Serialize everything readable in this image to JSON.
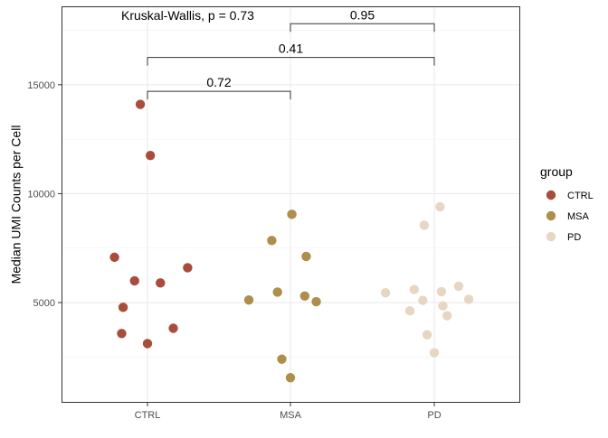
{
  "chart_data": {
    "type": "scatter",
    "title": "",
    "xlabel": "",
    "ylabel": "Median UMI Counts per Cell",
    "categories": [
      "CTRL",
      "MSA",
      "PD"
    ],
    "ylim": [
      400,
      18600
    ],
    "yticks": [
      5000,
      10000,
      15000
    ],
    "grid": true,
    "legend": {
      "title": "group",
      "placement": "right"
    },
    "series": [
      {
        "name": "CTRL",
        "color": "#A84D3B",
        "points": [
          {
            "x": "CTRL",
            "jitter": -0.05,
            "y": 14100
          },
          {
            "x": "CTRL",
            "jitter": 0.02,
            "y": 11750
          },
          {
            "x": "CTRL",
            "jitter": -0.23,
            "y": 7080
          },
          {
            "x": "CTRL",
            "jitter": -0.09,
            "y": 6000
          },
          {
            "x": "CTRL",
            "jitter": 0.09,
            "y": 5900
          },
          {
            "x": "CTRL",
            "jitter": 0.28,
            "y": 6600
          },
          {
            "x": "CTRL",
            "jitter": -0.17,
            "y": 4780
          },
          {
            "x": "CTRL",
            "jitter": -0.18,
            "y": 3580
          },
          {
            "x": "CTRL",
            "jitter": 0.18,
            "y": 3820
          },
          {
            "x": "CTRL",
            "jitter": 0.0,
            "y": 3120
          }
        ]
      },
      {
        "name": "MSA",
        "color": "#AE8E4B",
        "points": [
          {
            "x": "MSA",
            "jitter": 0.01,
            "y": 9050
          },
          {
            "x": "MSA",
            "jitter": -0.13,
            "y": 7850
          },
          {
            "x": "MSA",
            "jitter": 0.11,
            "y": 7120
          },
          {
            "x": "MSA",
            "jitter": -0.09,
            "y": 5480
          },
          {
            "x": "MSA",
            "jitter": 0.1,
            "y": 5300
          },
          {
            "x": "MSA",
            "jitter": -0.29,
            "y": 5120
          },
          {
            "x": "MSA",
            "jitter": 0.18,
            "y": 5040
          },
          {
            "x": "MSA",
            "jitter": -0.06,
            "y": 2400
          },
          {
            "x": "MSA",
            "jitter": 0.0,
            "y": 1550
          }
        ]
      },
      {
        "name": "PD",
        "color": "#E8D6C4",
        "points": [
          {
            "x": "PD",
            "jitter": 0.04,
            "y": 9400
          },
          {
            "x": "PD",
            "jitter": -0.07,
            "y": 8550
          },
          {
            "x": "PD",
            "jitter": 0.17,
            "y": 5750
          },
          {
            "x": "PD",
            "jitter": -0.14,
            "y": 5600
          },
          {
            "x": "PD",
            "jitter": 0.05,
            "y": 5500
          },
          {
            "x": "PD",
            "jitter": -0.34,
            "y": 5450
          },
          {
            "x": "PD",
            "jitter": 0.24,
            "y": 5150
          },
          {
            "x": "PD",
            "jitter": -0.08,
            "y": 5100
          },
          {
            "x": "PD",
            "jitter": 0.06,
            "y": 4850
          },
          {
            "x": "PD",
            "jitter": -0.17,
            "y": 4620
          },
          {
            "x": "PD",
            "jitter": 0.09,
            "y": 4400
          },
          {
            "x": "PD",
            "jitter": -0.05,
            "y": 3520
          },
          {
            "x": "PD",
            "jitter": 0.0,
            "y": 2700
          }
        ]
      }
    ],
    "annotations": {
      "global_test": {
        "text": "Kruskal-Wallis, p = 0.73",
        "x": "CTRL",
        "y": 18400
      },
      "comparisons": [
        {
          "group1": "CTRL",
          "group2": "MSA",
          "y": 14700,
          "label": "0.72"
        },
        {
          "group1": "CTRL",
          "group2": "PD",
          "y": 16250,
          "label": "0.41"
        },
        {
          "group1": "MSA",
          "group2": "PD",
          "y": 17800,
          "label": "0.95"
        }
      ]
    }
  }
}
